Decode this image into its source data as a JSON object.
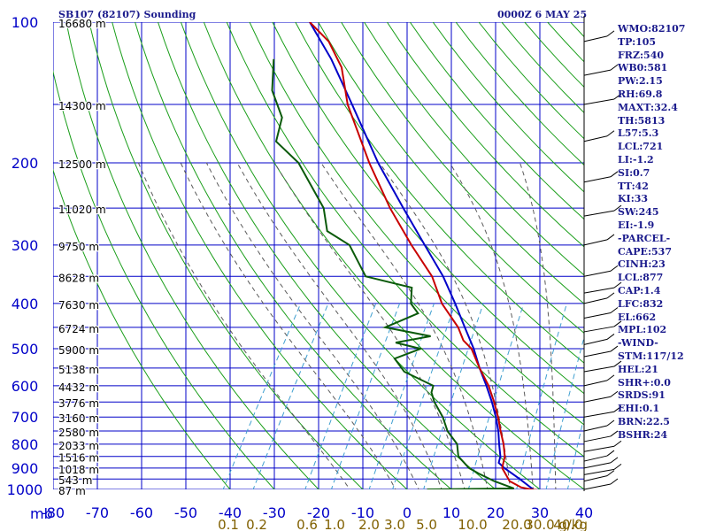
{
  "header": {
    "station": "SB107 (82107) Sounding",
    "time": "0000Z  6 MAY 25"
  },
  "colors": {
    "isobar": "#0000c8",
    "isotherm": "#0000c8",
    "dry_adiabat": "#1a9e1a",
    "moist_adiabat": "#5a5a5a",
    "mixing_ratio": "#3f9fd0",
    "temperature": "#c80000",
    "dewpoint": "#0a5a0a",
    "parcel": "#0000c8",
    "label_text": "#1a1a8c",
    "mixing_ratio_text": "#806000"
  },
  "indices": [
    "WMO:82107",
    "TP:105",
    "FRZ:540",
    "WB0:581",
    "PW:2.15",
    "RH:69.8",
    "MAXT:32.4",
    "TH:5813",
    "L57:5.3",
    "LCL:721",
    "LI:-1.2",
    "SI:0.7",
    "TT:42",
    "KI:33",
    "SW:245",
    "EI:-1.9",
    "-PARCEL-",
    "CAPE:537",
    "CINH:23",
    "LCL:877",
    "CAP:1.4",
    "LFC:832",
    "EL:662",
    "MPL:102",
    "-WIND-",
    "STM:117/12",
    "HEL:21",
    "SHR+:0.0",
    "SRDS:91",
    "EHI:0.1",
    "BRN:22.5",
    "BSHR:24"
  ],
  "chart_data": {
    "type": "skew-t",
    "title": "SB107 (82107) Sounding",
    "subtitle": "0000Z  6 MAY 25",
    "xlabel_left": "mb",
    "xlabel_right": "g/kg",
    "y_log_pressure": true,
    "pressure_ticks": [
      100,
      200,
      300,
      400,
      500,
      600,
      700,
      800,
      900,
      1000
    ],
    "temperature_ticks": [
      -80,
      -70,
      -60,
      -50,
      -40,
      -30,
      -20,
      -10,
      0,
      10,
      20,
      30,
      40
    ],
    "mixing_ratio_labels": [
      "0.1",
      "0.2",
      "0.6",
      "1.0",
      "2.0",
      "3.0",
      "5.0",
      "10.0",
      "20.0",
      "30.0",
      "40.0"
    ],
    "height_labels": [
      {
        "p": 100,
        "h": "16680 m"
      },
      {
        "p": 150,
        "h": "14300 m"
      },
      {
        "p": 200,
        "h": "12500 m"
      },
      {
        "p": 250,
        "h": "11020 m"
      },
      {
        "p": 300,
        "h": "9750 m"
      },
      {
        "p": 350,
        "h": "8628 m"
      },
      {
        "p": 400,
        "h": "7630 m"
      },
      {
        "p": 450,
        "h": "6724 m"
      },
      {
        "p": 500,
        "h": "5900 m"
      },
      {
        "p": 550,
        "h": "5138 m"
      },
      {
        "p": 600,
        "h": "4432 m"
      },
      {
        "p": 650,
        "h": "3776 m"
      },
      {
        "p": 700,
        "h": "3160 m"
      },
      {
        "p": 750,
        "h": "2580 m"
      },
      {
        "p": 800,
        "h": "2033 m"
      },
      {
        "p": 850,
        "h": "1516 m"
      },
      {
        "p": 900,
        "h": "1018 m"
      },
      {
        "p": 950,
        "h": "543 m"
      },
      {
        "p": 1000,
        "h": "87 m"
      }
    ],
    "temperature": [
      [
        1003,
        29.5
      ],
      [
        1000,
        28.0
      ],
      [
        990,
        25.5
      ],
      [
        960,
        22.0
      ],
      [
        925,
        20.0
      ],
      [
        900,
        18.5
      ],
      [
        850,
        17.5
      ],
      [
        800,
        15.5
      ],
      [
        750,
        13.0
      ],
      [
        700,
        10.5
      ],
      [
        650,
        7.5
      ],
      [
        600,
        4.0
      ],
      [
        550,
        -0.5
      ],
      [
        500,
        -5.0
      ],
      [
        480,
        -8.0
      ],
      [
        450,
        -11.0
      ],
      [
        400,
        -18.0
      ],
      [
        350,
        -24.0
      ],
      [
        300,
        -33.0
      ],
      [
        250,
        -43.0
      ],
      [
        200,
        -54.0
      ],
      [
        150,
        -67.0
      ],
      [
        125,
        -73.5
      ],
      [
        110,
        -80.0
      ],
      [
        100,
        -87.0
      ]
    ],
    "dewpoint": [
      [
        1000,
        4.5
      ],
      [
        995,
        24.0
      ],
      [
        960,
        18.5
      ],
      [
        925,
        14.0
      ],
      [
        900,
        11.0
      ],
      [
        850,
        7.0
      ],
      [
        800,
        5.0
      ],
      [
        750,
        1.0
      ],
      [
        700,
        -2.0
      ],
      [
        650,
        -6.0
      ],
      [
        620,
        -8.0
      ],
      [
        600,
        -8.5
      ],
      [
        560,
        -17.0
      ],
      [
        525,
        -21.0
      ],
      [
        500,
        -16.5
      ],
      [
        485,
        -23.0
      ],
      [
        470,
        -16.0
      ],
      [
        450,
        -27.5
      ],
      [
        420,
        -22.0
      ],
      [
        400,
        -25.0
      ],
      [
        370,
        -27.0
      ],
      [
        350,
        -39.0
      ],
      [
        300,
        -47.0
      ],
      [
        280,
        -54.0
      ],
      [
        250,
        -58.0
      ],
      [
        200,
        -70.0
      ],
      [
        180,
        -78.0
      ],
      [
        160,
        -80.0
      ],
      [
        140,
        -86.0
      ],
      [
        120,
        -90.0
      ]
    ],
    "parcel": [
      [
        1000,
        28.5
      ],
      [
        950,
        24.0
      ],
      [
        900,
        19.0
      ],
      [
        877,
        17.0
      ],
      [
        850,
        16.5
      ],
      [
        800,
        14.5
      ],
      [
        750,
        12.5
      ],
      [
        700,
        10.0
      ],
      [
        650,
        7.0
      ],
      [
        600,
        3.5
      ],
      [
        550,
        -0.5
      ],
      [
        500,
        -4.5
      ],
      [
        450,
        -9.5
      ],
      [
        400,
        -15.0
      ],
      [
        350,
        -21.5
      ],
      [
        300,
        -30.0
      ],
      [
        250,
        -40.0
      ],
      [
        200,
        -52.0
      ],
      [
        150,
        -66.0
      ],
      [
        120,
        -77.0
      ],
      [
        100,
        -87.0
      ]
    ]
  }
}
